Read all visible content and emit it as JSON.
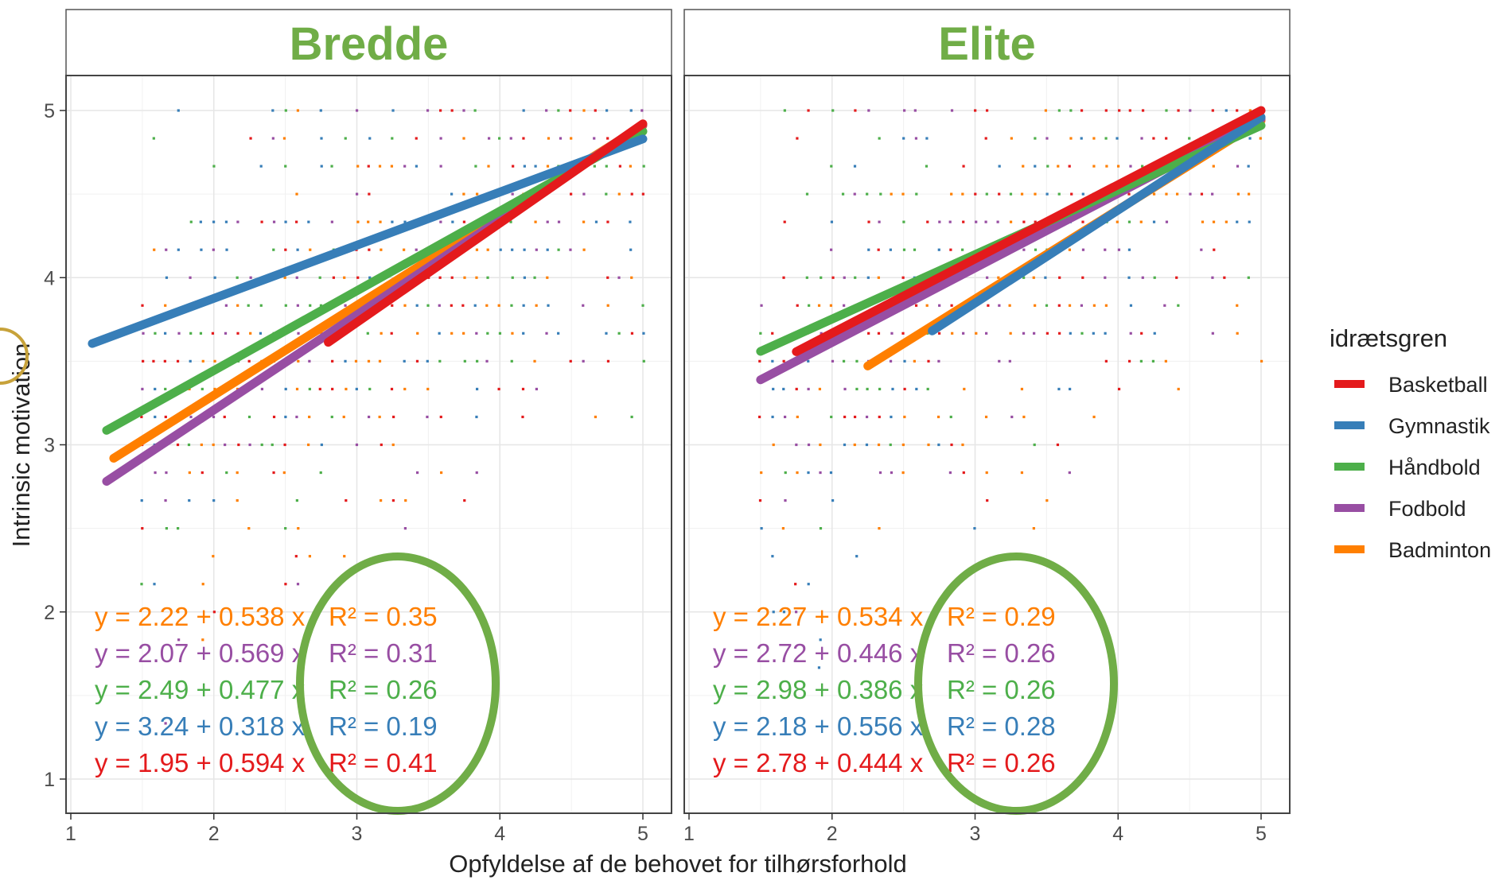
{
  "chart_data": {
    "type": "scatter",
    "xlabel": "Opfyldelse af de behovet for tilhørsforhold",
    "ylabel": "Intrinsic motivation",
    "xlim": [
      1,
      5
    ],
    "ylim": [
      1,
      5
    ],
    "x_ticks": [
      1,
      2,
      3,
      4,
      5
    ],
    "y_ticks": [
      1,
      2,
      3,
      4,
      5
    ],
    "grid": true,
    "legend": {
      "title": "idrætsgren",
      "placement": "right",
      "items": [
        {
          "name": "Basketball",
          "color": "#e41a1c"
        },
        {
          "name": "Gymnastik",
          "color": "#377eb8"
        },
        {
          "name": "Håndbold",
          "color": "#4daf4a"
        },
        {
          "name": "Fodbold",
          "color": "#984ea3"
        },
        {
          "name": "Badminton",
          "color": "#ff7f00"
        }
      ]
    },
    "highlight_color": "#70ad47",
    "panels": [
      {
        "title": "Bredde",
        "fits": [
          {
            "series": "Badminton",
            "color": "#ff7f00",
            "intercept": 2.22,
            "slope": 0.538,
            "r2": 0.35,
            "x_range": [
              1.3,
              5
            ],
            "equation_label": "y = 2.22 + 0.538 x",
            "r2_label": "R² = 0.35"
          },
          {
            "series": "Fodbold",
            "color": "#984ea3",
            "intercept": 2.07,
            "slope": 0.569,
            "r2": 0.31,
            "x_range": [
              1.25,
              5
            ],
            "equation_label": "y = 2.07 + 0.569 x",
            "r2_label": "R² = 0.31"
          },
          {
            "series": "Håndbold",
            "color": "#4daf4a",
            "intercept": 2.49,
            "slope": 0.477,
            "r2": 0.26,
            "x_range": [
              1.25,
              5
            ],
            "equation_label": "y = 2.49 + 0.477 x",
            "r2_label": "R² = 0.26"
          },
          {
            "series": "Gymnastik",
            "color": "#377eb8",
            "intercept": 3.24,
            "slope": 0.318,
            "r2": 0.19,
            "x_range": [
              1.15,
              5
            ],
            "equation_label": "y = 3.24 + 0.318 x",
            "r2_label": "R² = 0.19"
          },
          {
            "series": "Basketball",
            "color": "#e41a1c",
            "intercept": 1.95,
            "slope": 0.594,
            "r2": 0.41,
            "x_range": [
              2.8,
              5
            ],
            "equation_label": "y = 1.95 + 0.594 x",
            "r2_label": "R² = 0.41"
          }
        ]
      },
      {
        "title": "Elite",
        "fits": [
          {
            "series": "Badminton",
            "color": "#ff7f00",
            "intercept": 2.27,
            "slope": 0.534,
            "r2": 0.29,
            "x_range": [
              2.25,
              5
            ],
            "equation_label": "y = 2.27 + 0.534 x",
            "r2_label": "R² = 0.29"
          },
          {
            "series": "Fodbold",
            "color": "#984ea3",
            "intercept": 2.72,
            "slope": 0.446,
            "r2": 0.26,
            "x_range": [
              1.5,
              5
            ],
            "equation_label": "y = 2.72 + 0.446 x",
            "r2_label": "R² = 0.26"
          },
          {
            "series": "Håndbold",
            "color": "#4daf4a",
            "intercept": 2.98,
            "slope": 0.386,
            "r2": 0.26,
            "x_range": [
              1.5,
              5
            ],
            "equation_label": "y = 2.98 + 0.386 x",
            "r2_label": "R² = 0.26"
          },
          {
            "series": "Gymnastik",
            "color": "#377eb8",
            "intercept": 2.18,
            "slope": 0.556,
            "r2": 0.28,
            "x_range": [
              2.7,
              5
            ],
            "equation_label": "y = 2.18 + 0.556 x",
            "r2_label": "R² = 0.28"
          },
          {
            "series": "Basketball",
            "color": "#e41a1c",
            "intercept": 2.78,
            "slope": 0.444,
            "r2": 0.26,
            "x_range": [
              1.75,
              5
            ],
            "equation_label": "y = 2.78 + 0.444 x",
            "r2_label": "R² = 0.26"
          }
        ]
      }
    ]
  }
}
